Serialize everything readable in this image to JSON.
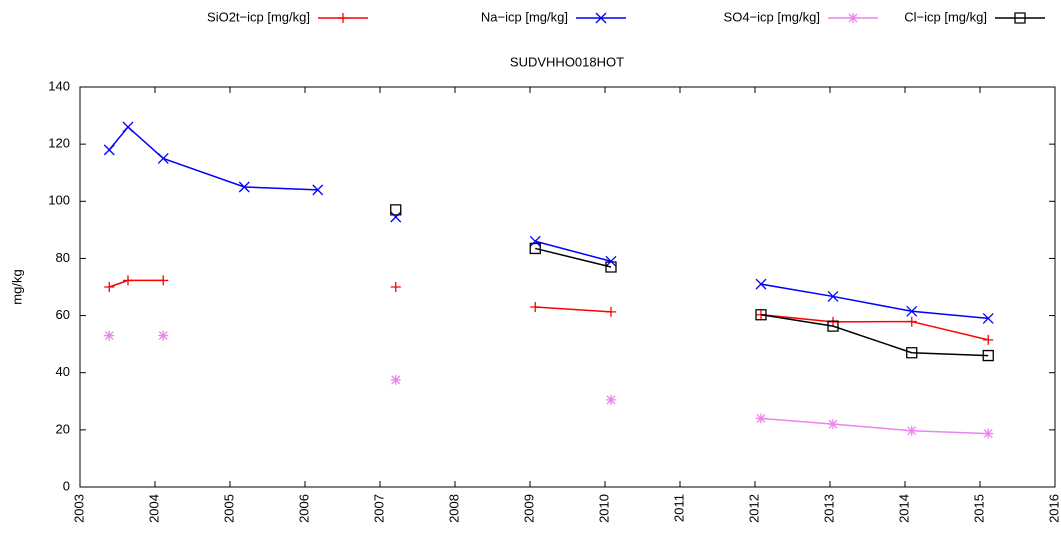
{
  "chart_data": {
    "type": "line",
    "title": "SUDVHHO018HOT",
    "y_label": "mg/kg",
    "x": [
      2003.39,
      2003.64,
      2004.11,
      2005.19,
      2006.17,
      null,
      2007.21,
      null,
      2009.07,
      2010.08,
      null,
      2012.08,
      2013.04,
      2014.09,
      2015.11
    ],
    "series": [
      {
        "name": "SiO2t−icp [mg/kg]",
        "color": "#ff0000",
        "marker": "plus",
        "values": [
          70,
          72.3,
          72.3,
          null,
          null,
          null,
          70,
          null,
          63,
          61.3,
          null,
          60.3,
          57.8,
          57.9,
          51.5
        ]
      },
      {
        "name": "Na−icp [mg/kg]",
        "color": "#0000ff",
        "marker": "cross",
        "values": [
          118,
          126,
          115,
          105,
          104,
          null,
          94.5,
          null,
          86,
          79,
          null,
          71,
          66.7,
          61.5,
          59
        ]
      },
      {
        "name": "SO4−icp [mg/kg]",
        "color": "#ee82ee",
        "marker": "star",
        "values": [
          53,
          null,
          53,
          null,
          null,
          null,
          37.5,
          null,
          null,
          30.5,
          null,
          24,
          22,
          19.7,
          18.7
        ]
      },
      {
        "name": "Cl−icp [mg/kg]",
        "color": "#000000",
        "marker": "square",
        "values": [
          null,
          null,
          null,
          null,
          null,
          null,
          97,
          null,
          83.5,
          77,
          null,
          60.3,
          56.3,
          47,
          46
        ]
      }
    ],
    "xlim": [
      2003,
      2016
    ],
    "xticks": [
      2003,
      2004,
      2005,
      2006,
      2007,
      2008,
      2009,
      2010,
      2011,
      2012,
      2013,
      2014,
      2015,
      2016
    ],
    "ylim": [
      0,
      140
    ],
    "yticks": [
      0,
      20,
      40,
      60,
      80,
      100,
      120,
      140
    ],
    "grid": false
  }
}
